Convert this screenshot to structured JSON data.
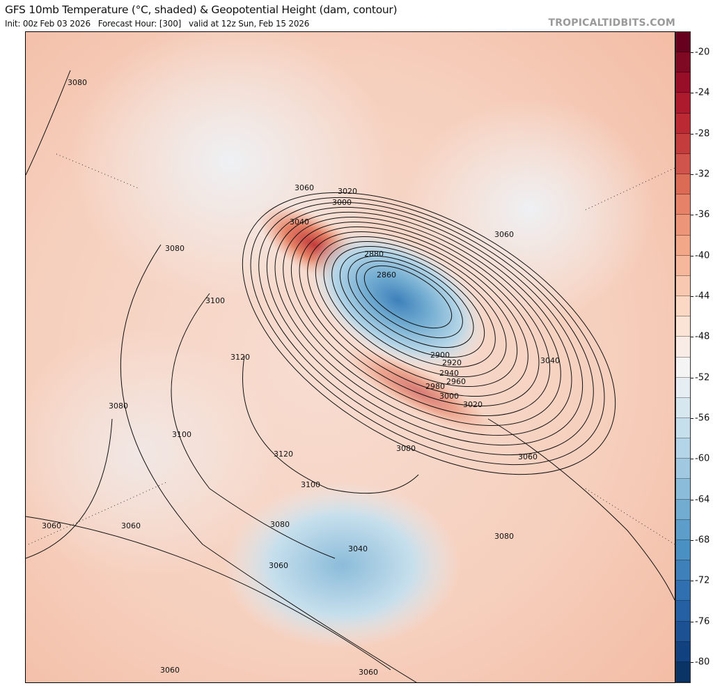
{
  "header": {
    "title": "GFS 10mb Temperature (°C, shaded) & Geopotential Height (dam, contour)",
    "subtitle": "Init: 00z Feb 03 2026   Forecast Hour: [300]   valid at 12z Sun, Feb 15 2026",
    "brand": "TROPICALTIDBITS.COM"
  },
  "colorbar": {
    "range": [
      -82,
      -18
    ],
    "step": 2,
    "tick_labels": [
      "-20",
      "-24",
      "-28",
      "-32",
      "-36",
      "-40",
      "-44",
      "-48",
      "-52",
      "-56",
      "-60",
      "-64",
      "-68",
      "-72",
      "-76",
      "-80"
    ],
    "colors": [
      "#67001f",
      "#7f0823",
      "#980e28",
      "#ad1a2e",
      "#bb2a33",
      "#c43c3c",
      "#d0544b",
      "#db6b55",
      "#e58267",
      "#ec9578",
      "#f3a789",
      "#f5b89c",
      "#f8c9b0",
      "#fad8c3",
      "#fbe3d5",
      "#f9ece6",
      "#f4f4f4",
      "#e6eef3",
      "#d7e7f0",
      "#c6dfec",
      "#b4d5e7",
      "#a0c9e1",
      "#8bbcda",
      "#72acd1",
      "#5c9ec9",
      "#4a90c2",
      "#3d80ba",
      "#3170b0",
      "#2660a4",
      "#1c5193",
      "#124180",
      "#0a3366"
    ]
  },
  "contour_labels": [
    "3080",
    "3060",
    "3020",
    "3000",
    "3040",
    "3080",
    "2880",
    "2860",
    "3100",
    "3060",
    "3120",
    "2900",
    "2920",
    "2940",
    "2960",
    "2980",
    "3000",
    "3020",
    "3040",
    "3080",
    "3100",
    "3080",
    "3120",
    "3060",
    "3100",
    "3060",
    "3060",
    "3080",
    "3080",
    "3040",
    "3060",
    "3060",
    "3060"
  ]
}
